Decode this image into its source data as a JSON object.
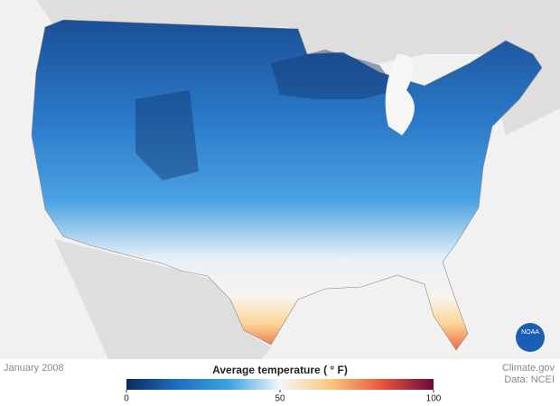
{
  "date": "January 2008",
  "legend": {
    "title": "Average temperature ( ° F)",
    "range": [
      0,
      100
    ],
    "ticks": [
      0,
      50,
      100
    ],
    "colors": [
      "#0b2a5e",
      "#1f6fc0",
      "#3aa3e3",
      "#f4f6f8",
      "#f9c77e",
      "#e8553d",
      "#6a0a3a"
    ]
  },
  "credit": [
    "Climate.gov",
    "Data: NCEI"
  ],
  "logo": "NOAA"
}
